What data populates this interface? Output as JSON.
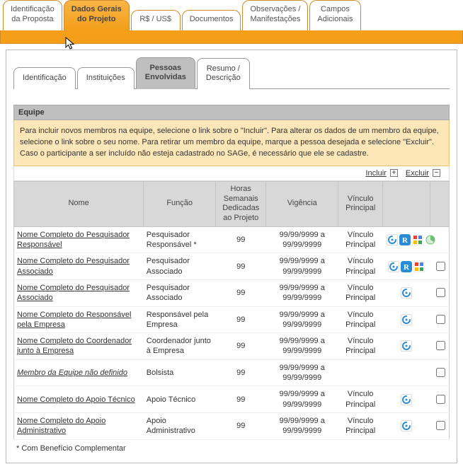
{
  "top_tabs": [
    {
      "label": "Identificação\nda Proposta",
      "active": false,
      "name": "tab-identificacao-proposta"
    },
    {
      "label": "Dados Gerais\ndo Projeto",
      "active": true,
      "name": "tab-dados-gerais"
    },
    {
      "label": "R$ / US$",
      "active": false,
      "name": "tab-moeda"
    },
    {
      "label": "Documentos",
      "active": false,
      "name": "tab-documentos"
    },
    {
      "label": "Observações /\nManifestações",
      "active": false,
      "name": "tab-observacoes"
    },
    {
      "label": "Campos\nAdicionais",
      "active": false,
      "name": "tab-campos-adicionais"
    }
  ],
  "sub_tabs": [
    {
      "label": "Identificação",
      "active": false,
      "name": "subtab-identificacao"
    },
    {
      "label": "Instituições",
      "active": false,
      "name": "subtab-instituicoes"
    },
    {
      "label": "Pessoas\nEnvolvidas",
      "active": true,
      "name": "subtab-pessoas-envolvidas"
    },
    {
      "label": "Resumo /\nDescrição",
      "active": false,
      "name": "subtab-resumo-descricao"
    }
  ],
  "section": {
    "title": "Equipe",
    "help": "Para incluir novos membros na equipe, selecione o link sobre o \"Incluir\". Para alterar os dados de um membro da equipe, selecione o link sobre o seu nome. Para retirar um membro da equipe, marque a pessoa desejada e selecione \"Excluir\". Caso o participante a ser incluído não esteja cadastrado no SAGe, é necessário que ele se cadastre.",
    "include_label": "Incluir",
    "exclude_label": "Excluir",
    "footnote": "* Com Benefício Complementar"
  },
  "table": {
    "headers": {
      "nome": "Nome",
      "funcao": "Função",
      "horas": "Horas\nSemanais\nDedicadas\nao Projeto",
      "vigencia": "Vigência",
      "vinculo": "Vínculo\nPrincipal"
    },
    "icon_colors": {
      "swirl": "#2a8bd6",
      "r": "#2a8bd6",
      "google": "#e8a33a",
      "pie": "#6fbf73",
      "sage": "#2a8bd6"
    },
    "rows": [
      {
        "nome": "Nome Completo do Pesquisador Responsável",
        "funcao": "Pesquisador Responsável *",
        "horas": "99",
        "vigencia": "99/99/9999 a 99/99/9999",
        "vinculo": "Vínculo Principal",
        "icons": [
          "swirl",
          "r",
          "google",
          "pie"
        ],
        "checkbox": false
      },
      {
        "nome": "Nome Completo do Pesquisador Associado",
        "funcao": "Pesquisador Associado",
        "horas": "99",
        "vigencia": "99/99/9999 a 99/99/9999",
        "vinculo": "Vínculo Principal",
        "icons": [
          "swirl",
          "r",
          "google"
        ],
        "checkbox": true
      },
      {
        "nome": "Nome Completo do Pesquisador Associado",
        "funcao": "Pesquisador Associado",
        "horas": "99",
        "vigencia": "99/99/9999 a 99/99/9999",
        "vinculo": "Vínculo Principal",
        "icons": [
          "sage"
        ],
        "checkbox": true
      },
      {
        "nome": "Nome Completo do Responsável pela Empresa",
        "funcao": "Responsável pela Empresa",
        "horas": "99",
        "vigencia": "99/99/9999 a 99/99/9999",
        "vinculo": "Vínculo Principal",
        "icons": [
          "sage"
        ],
        "checkbox": true
      },
      {
        "nome": "Nome Completo do Coordenador junto à Empresa",
        "funcao": "Coordenador junto à Empresa",
        "horas": "99",
        "vigencia": "99/99/9999 a 99/99/9999",
        "vinculo": "Vínculo Principal",
        "icons": [
          "sage"
        ],
        "checkbox": true
      },
      {
        "nome": "Membro da Equipe não definido",
        "funcao": "Bolsista",
        "horas": "99",
        "vigencia": "99/99/9999 a 99/99/9999",
        "vinculo": "",
        "icons": [],
        "checkbox": true,
        "italic": true
      },
      {
        "nome": "Nome Completo do Apoio Técnico",
        "funcao": "Apoio Técnico",
        "horas": "99",
        "vigencia": "99/99/9999 a 99/99/9999",
        "vinculo": "Vínculo Principal",
        "icons": [
          "sage"
        ],
        "checkbox": true
      },
      {
        "nome": "Nome Completo do Apoio Administrativo",
        "funcao": "Apoio Administrativo",
        "horas": "99",
        "vigencia": "99/99/9999 a 99/99/9999",
        "vinculo": "Vínculo Principal",
        "icons": [
          "sage"
        ],
        "checkbox": true
      }
    ]
  }
}
